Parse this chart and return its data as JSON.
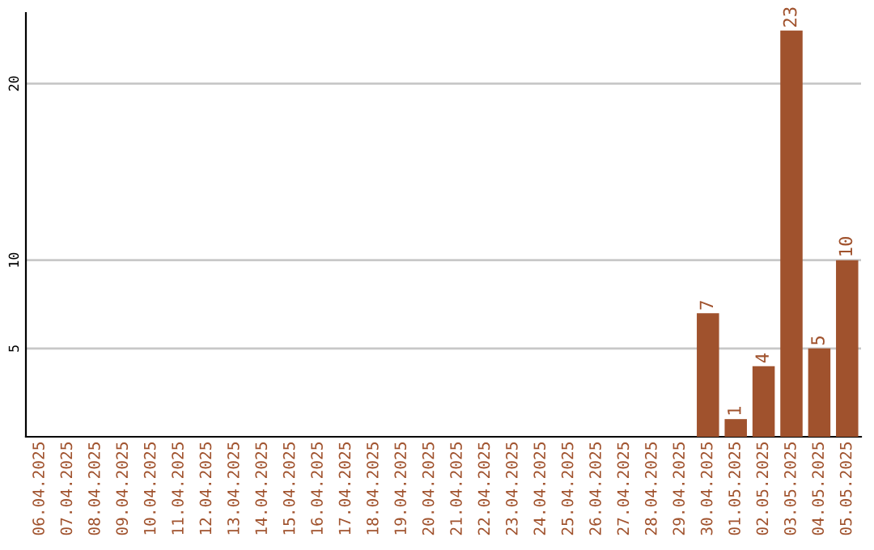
{
  "chart_data": {
    "type": "bar",
    "categories": [
      "06.04.2025",
      "07.04.2025",
      "08.04.2025",
      "09.04.2025",
      "10.04.2025",
      "11.04.2025",
      "12.04.2025",
      "13.04.2025",
      "14.04.2025",
      "15.04.2025",
      "16.04.2025",
      "17.04.2025",
      "18.04.2025",
      "19.04.2025",
      "20.04.2025",
      "21.04.2025",
      "22.04.2025",
      "23.04.2025",
      "24.04.2025",
      "25.04.2025",
      "26.04.2025",
      "27.04.2025",
      "28.04.2025",
      "29.04.2025",
      "30.04.2025",
      "01.05.2025",
      "02.05.2025",
      "03.05.2025",
      "04.05.2025",
      "05.05.2025"
    ],
    "values": [
      0,
      0,
      0,
      0,
      0,
      0,
      0,
      0,
      0,
      0,
      0,
      0,
      0,
      0,
      0,
      0,
      0,
      0,
      0,
      0,
      0,
      0,
      0,
      0,
      7,
      1,
      4,
      23,
      5,
      10
    ],
    "value_labels": [
      null,
      null,
      null,
      null,
      null,
      null,
      null,
      null,
      null,
      null,
      null,
      null,
      null,
      null,
      null,
      null,
      null,
      null,
      null,
      null,
      null,
      null,
      null,
      null,
      "7",
      "1",
      "4",
      "23",
      "5",
      "10"
    ],
    "color": "#a0522d",
    "ylim": [
      0,
      24
    ],
    "yticks": [
      5,
      10,
      20
    ],
    "grid": "y"
  }
}
